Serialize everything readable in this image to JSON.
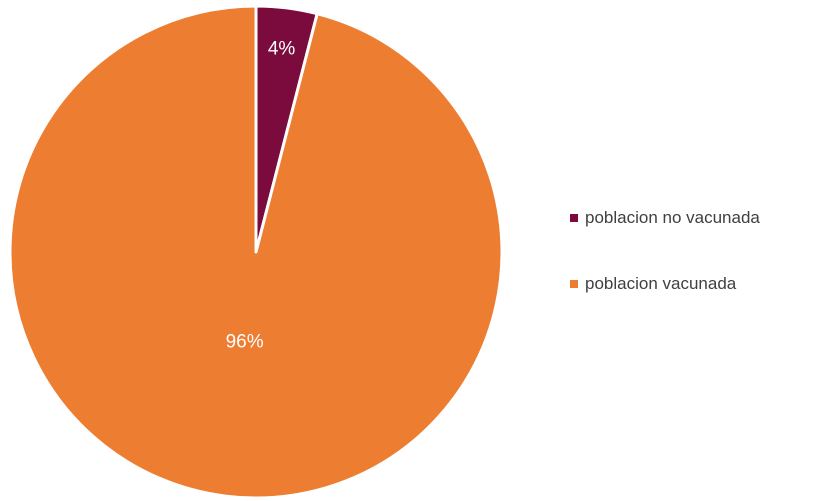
{
  "chart_data": {
    "type": "pie",
    "start_angle": "top",
    "direction": "clockwise",
    "series": [
      {
        "slices": [
          {
            "label": "poblacion no vacunada",
            "value": 4,
            "display": "4%",
            "color": "#7b0a3d"
          },
          {
            "label": "poblacion vacunada",
            "value": 96,
            "display": "96%",
            "color": "#ed7d31"
          }
        ]
      }
    ],
    "slice_border_color": "#ffffff",
    "legend": {
      "position": "right",
      "items": [
        {
          "label": "poblacion no vacunada",
          "color": "#7b0a3d"
        },
        {
          "label": "poblacion vacunada",
          "color": "#ed7d31"
        }
      ]
    }
  }
}
